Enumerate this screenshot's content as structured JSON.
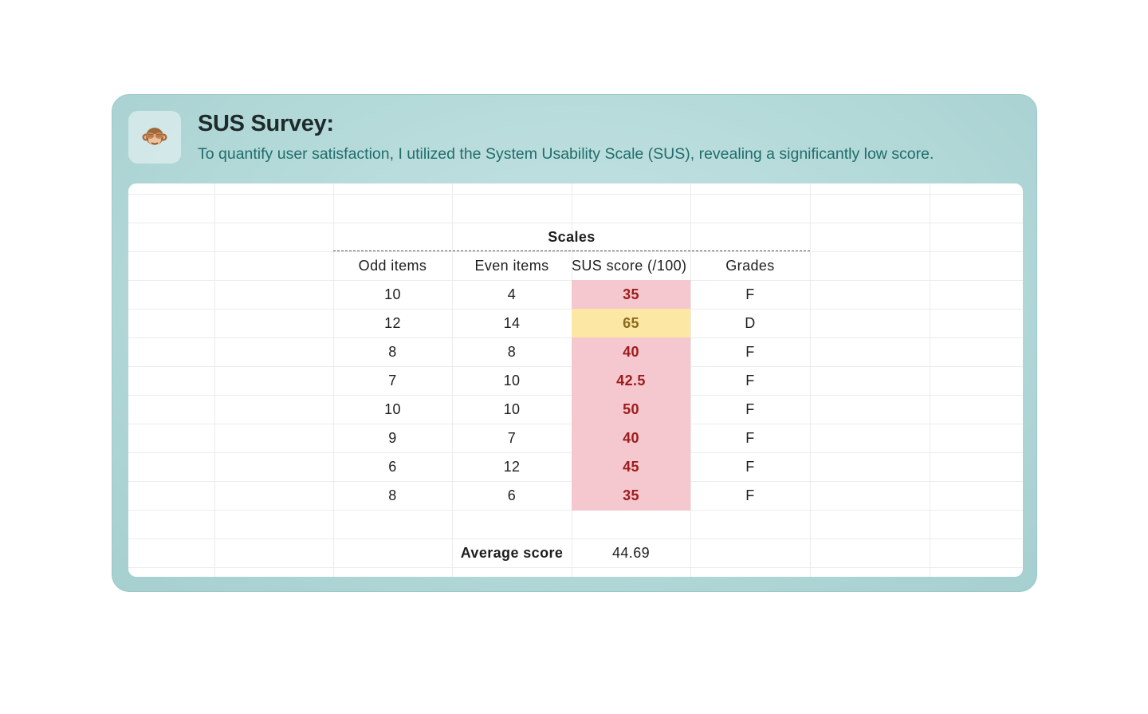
{
  "header": {
    "icon": "see-no-evil-monkey-icon",
    "icon_glyph": "🙈",
    "title": "SUS Survey:",
    "subtitle": "To quantify user satisfaction, I utilized the System Usability Scale (SUS), revealing a significantly low score."
  },
  "table": {
    "group_header": "Scales",
    "columns": [
      "Odd items",
      "Even items",
      "SUS score (/100)",
      "Grades"
    ],
    "rows": [
      {
        "odd": "10",
        "even": "4",
        "sus": "35",
        "grade": "F",
        "level": "low"
      },
      {
        "odd": "12",
        "even": "14",
        "sus": "65",
        "grade": "D",
        "level": "mid"
      },
      {
        "odd": "8",
        "even": "8",
        "sus": "40",
        "grade": "F",
        "level": "low"
      },
      {
        "odd": "7",
        "even": "10",
        "sus": "42.5",
        "grade": "F",
        "level": "low"
      },
      {
        "odd": "10",
        "even": "10",
        "sus": "50",
        "grade": "F",
        "level": "low"
      },
      {
        "odd": "9",
        "even": "7",
        "sus": "40",
        "grade": "F",
        "level": "low"
      },
      {
        "odd": "6",
        "even": "12",
        "sus": "45",
        "grade": "F",
        "level": "low"
      },
      {
        "odd": "8",
        "even": "6",
        "sus": "35",
        "grade": "F",
        "level": "low"
      }
    ],
    "average_label": "Average score",
    "average_value": "44.69"
  },
  "colors": {
    "low_bg": "#f5c7ce",
    "low_text": "#9c1c1c",
    "mid_bg": "#fce8a4",
    "mid_text": "#8a6a1e",
    "grid_line": "#ececec"
  }
}
